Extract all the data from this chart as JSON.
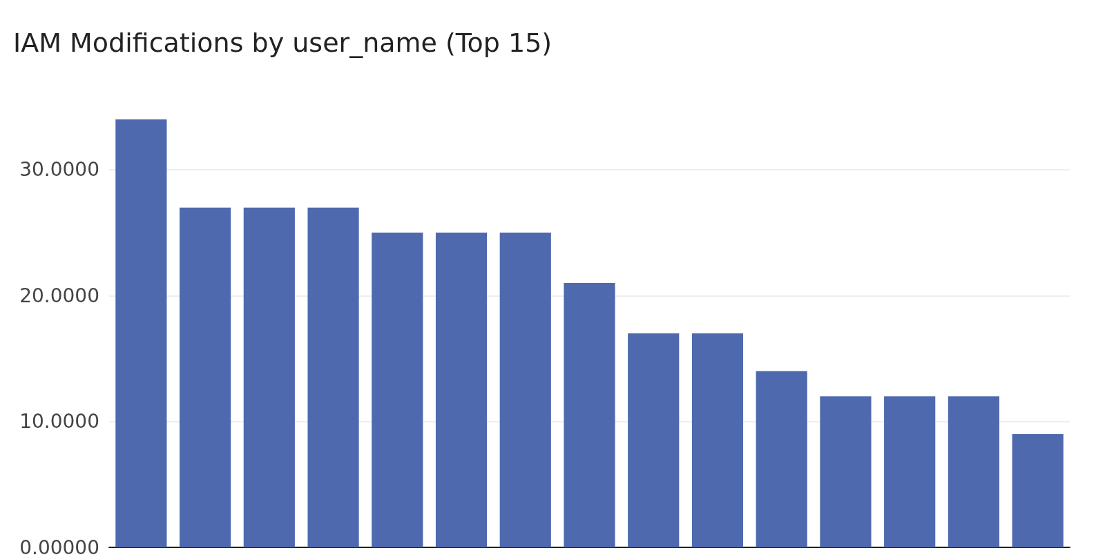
{
  "chart_data": {
    "type": "bar",
    "title": "IAM Modifications by user_name (Top 15)",
    "categories": [
      null,
      null,
      null,
      null,
      null,
      null,
      null,
      null,
      null,
      null,
      null,
      null,
      null,
      null,
      null
    ],
    "values": [
      34,
      27,
      27,
      27,
      25,
      25,
      25,
      21,
      17,
      17,
      14,
      12,
      12,
      12,
      9
    ],
    "color": "#4f69ae",
    "ylim": [
      0,
      34
    ],
    "yticks": [
      {
        "value": 0,
        "label": "0.00000"
      },
      {
        "value": 10,
        "label": "10.0000"
      },
      {
        "value": 20,
        "label": "20.0000"
      },
      {
        "value": 30,
        "label": "30.0000"
      }
    ],
    "grid": "y",
    "tick_labels": "y"
  }
}
